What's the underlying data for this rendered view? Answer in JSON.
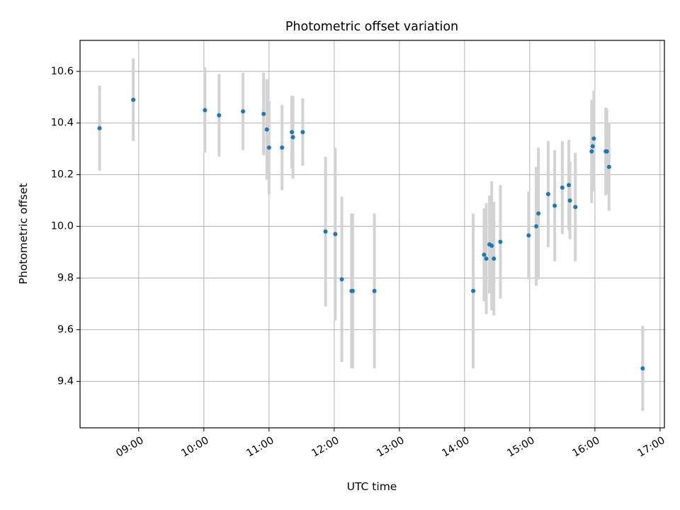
{
  "chart_data": {
    "type": "scatter",
    "title": "Photometric offset variation",
    "xlabel": "UTC time",
    "ylabel": "Photometric offset",
    "x_tick_labels": [
      "09:00",
      "10:00",
      "11:00",
      "12:00",
      "13:00",
      "14:00",
      "15:00",
      "16:00",
      "17:00"
    ],
    "y_tick_labels": [
      "9.4",
      "9.6",
      "9.8",
      "10.0",
      "10.2",
      "10.4",
      "10.6"
    ],
    "xlim": [
      "08:06",
      "17:04"
    ],
    "ylim": [
      9.22,
      10.72
    ],
    "grid": true,
    "point_color": "#1f77b4",
    "errorbar_color": "#d3d3d3",
    "series": [
      {
        "x": [
          "08:24",
          "08:55",
          "10:01",
          "10:14",
          "10:36",
          "10:55",
          "10:58",
          "11:00",
          "11:12",
          "11:21",
          "11:22",
          "11:31",
          "11:52",
          "12:01",
          "12:07",
          "12:16",
          "12:17",
          "12:37",
          "14:08",
          "14:18",
          "14:20",
          "14:23",
          "14:25",
          "14:27",
          "14:33",
          "14:59",
          "15:06",
          "15:08",
          "15:17",
          "15:23",
          "15:30",
          "15:36",
          "15:37",
          "15:42",
          "15:57",
          "15:58",
          "15:59",
          "16:10",
          "16:11",
          "16:13",
          "16:44"
        ],
        "y": [
          10.38,
          10.49,
          10.45,
          10.43,
          10.445,
          10.435,
          10.375,
          10.305,
          10.305,
          10.365,
          10.345,
          10.365,
          9.98,
          9.97,
          9.795,
          9.75,
          9.75,
          9.75,
          9.75,
          9.89,
          9.875,
          9.93,
          9.925,
          9.875,
          9.94,
          9.965,
          10.0,
          10.05,
          10.125,
          10.08,
          10.15,
          10.16,
          10.1,
          10.075,
          10.29,
          10.31,
          10.34,
          10.29,
          10.29,
          10.23,
          9.45
        ],
        "yerr": [
          0.165,
          0.16,
          0.165,
          0.16,
          0.15,
          0.16,
          0.195,
          0.18,
          0.165,
          0.14,
          0.16,
          0.13,
          0.29,
          0.335,
          0.32,
          0.3,
          0.3,
          0.3,
          0.3,
          0.18,
          0.215,
          0.19,
          0.25,
          0.22,
          0.22,
          0.17,
          0.23,
          0.255,
          0.205,
          0.215,
          0.18,
          0.175,
          0.15,
          0.21,
          0.2,
          0.175,
          0.185,
          0.17,
          0.165,
          0.17,
          0.165
        ]
      }
    ]
  }
}
